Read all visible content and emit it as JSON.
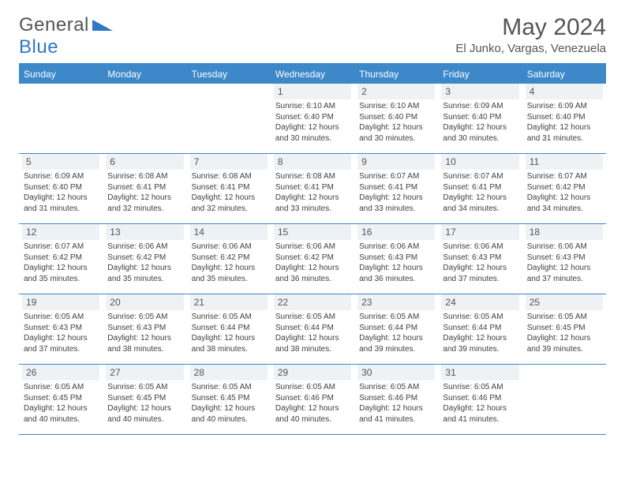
{
  "logo": {
    "text_gray": "General",
    "text_blue": "Blue"
  },
  "title": "May 2024",
  "location": "El Junko, Vargas, Venezuela",
  "colors": {
    "header_bg": "#3d88c9",
    "daynum_bg": "#eef2f5",
    "text_gray": "#555555",
    "info_text": "#404040",
    "accent_blue": "#2f78c4",
    "white": "#ffffff"
  },
  "day_headers": [
    "Sunday",
    "Monday",
    "Tuesday",
    "Wednesday",
    "Thursday",
    "Friday",
    "Saturday"
  ],
  "weeks": [
    [
      {
        "empty": true
      },
      {
        "empty": true
      },
      {
        "empty": true
      },
      {
        "day": "1",
        "sunrise": "6:10 AM",
        "sunset": "6:40 PM",
        "daylight": "12 hours and 30 minutes."
      },
      {
        "day": "2",
        "sunrise": "6:10 AM",
        "sunset": "6:40 PM",
        "daylight": "12 hours and 30 minutes."
      },
      {
        "day": "3",
        "sunrise": "6:09 AM",
        "sunset": "6:40 PM",
        "daylight": "12 hours and 30 minutes."
      },
      {
        "day": "4",
        "sunrise": "6:09 AM",
        "sunset": "6:40 PM",
        "daylight": "12 hours and 31 minutes."
      }
    ],
    [
      {
        "day": "5",
        "sunrise": "6:09 AM",
        "sunset": "6:40 PM",
        "daylight": "12 hours and 31 minutes."
      },
      {
        "day": "6",
        "sunrise": "6:08 AM",
        "sunset": "6:41 PM",
        "daylight": "12 hours and 32 minutes."
      },
      {
        "day": "7",
        "sunrise": "6:08 AM",
        "sunset": "6:41 PM",
        "daylight": "12 hours and 32 minutes."
      },
      {
        "day": "8",
        "sunrise": "6:08 AM",
        "sunset": "6:41 PM",
        "daylight": "12 hours and 33 minutes."
      },
      {
        "day": "9",
        "sunrise": "6:07 AM",
        "sunset": "6:41 PM",
        "daylight": "12 hours and 33 minutes."
      },
      {
        "day": "10",
        "sunrise": "6:07 AM",
        "sunset": "6:41 PM",
        "daylight": "12 hours and 34 minutes."
      },
      {
        "day": "11",
        "sunrise": "6:07 AM",
        "sunset": "6:42 PM",
        "daylight": "12 hours and 34 minutes."
      }
    ],
    [
      {
        "day": "12",
        "sunrise": "6:07 AM",
        "sunset": "6:42 PM",
        "daylight": "12 hours and 35 minutes."
      },
      {
        "day": "13",
        "sunrise": "6:06 AM",
        "sunset": "6:42 PM",
        "daylight": "12 hours and 35 minutes."
      },
      {
        "day": "14",
        "sunrise": "6:06 AM",
        "sunset": "6:42 PM",
        "daylight": "12 hours and 35 minutes."
      },
      {
        "day": "15",
        "sunrise": "6:06 AM",
        "sunset": "6:42 PM",
        "daylight": "12 hours and 36 minutes."
      },
      {
        "day": "16",
        "sunrise": "6:06 AM",
        "sunset": "6:43 PM",
        "daylight": "12 hours and 36 minutes."
      },
      {
        "day": "17",
        "sunrise": "6:06 AM",
        "sunset": "6:43 PM",
        "daylight": "12 hours and 37 minutes."
      },
      {
        "day": "18",
        "sunrise": "6:06 AM",
        "sunset": "6:43 PM",
        "daylight": "12 hours and 37 minutes."
      }
    ],
    [
      {
        "day": "19",
        "sunrise": "6:05 AM",
        "sunset": "6:43 PM",
        "daylight": "12 hours and 37 minutes."
      },
      {
        "day": "20",
        "sunrise": "6:05 AM",
        "sunset": "6:43 PM",
        "daylight": "12 hours and 38 minutes."
      },
      {
        "day": "21",
        "sunrise": "6:05 AM",
        "sunset": "6:44 PM",
        "daylight": "12 hours and 38 minutes."
      },
      {
        "day": "22",
        "sunrise": "6:05 AM",
        "sunset": "6:44 PM",
        "daylight": "12 hours and 38 minutes."
      },
      {
        "day": "23",
        "sunrise": "6:05 AM",
        "sunset": "6:44 PM",
        "daylight": "12 hours and 39 minutes."
      },
      {
        "day": "24",
        "sunrise": "6:05 AM",
        "sunset": "6:44 PM",
        "daylight": "12 hours and 39 minutes."
      },
      {
        "day": "25",
        "sunrise": "6:05 AM",
        "sunset": "6:45 PM",
        "daylight": "12 hours and 39 minutes."
      }
    ],
    [
      {
        "day": "26",
        "sunrise": "6:05 AM",
        "sunset": "6:45 PM",
        "daylight": "12 hours and 40 minutes."
      },
      {
        "day": "27",
        "sunrise": "6:05 AM",
        "sunset": "6:45 PM",
        "daylight": "12 hours and 40 minutes."
      },
      {
        "day": "28",
        "sunrise": "6:05 AM",
        "sunset": "6:45 PM",
        "daylight": "12 hours and 40 minutes."
      },
      {
        "day": "29",
        "sunrise": "6:05 AM",
        "sunset": "6:46 PM",
        "daylight": "12 hours and 40 minutes."
      },
      {
        "day": "30",
        "sunrise": "6:05 AM",
        "sunset": "6:46 PM",
        "daylight": "12 hours and 41 minutes."
      },
      {
        "day": "31",
        "sunrise": "6:05 AM",
        "sunset": "6:46 PM",
        "daylight": "12 hours and 41 minutes."
      },
      {
        "empty": true
      }
    ]
  ],
  "labels": {
    "sunrise": "Sunrise:",
    "sunset": "Sunset:",
    "daylight": "Daylight:"
  }
}
